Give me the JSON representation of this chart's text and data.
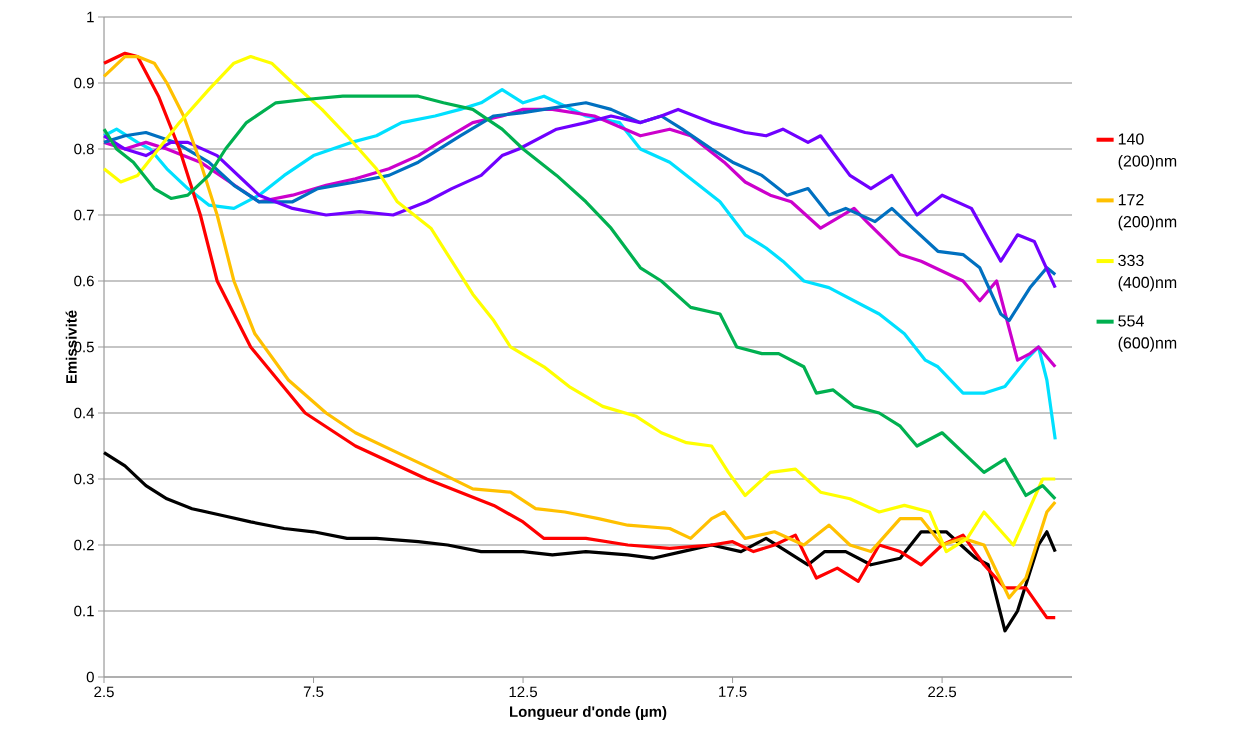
{
  "chart_data": {
    "type": "line",
    "xlabel": "Longueur d'onde (µm)",
    "ylabel": "Emissivité",
    "xlim": [
      2.5,
      25.6
    ],
    "xticks": [
      2.5,
      7.5,
      12.5,
      17.5,
      22.5
    ],
    "ylim": [
      0,
      1
    ],
    "yticks": [
      0,
      0.1,
      0.2,
      0.3,
      0.4,
      0.5,
      0.6,
      0.7,
      0.8,
      0.9,
      1
    ],
    "grid": "y",
    "legend": "right",
    "marker": "none",
    "line_style": "solid",
    "series": [
      {
        "color": "#00e0ff",
        "x": [
          2.5,
          2.8,
          3.3,
          3.6,
          4.0,
          4.5,
          5.0,
          5.6,
          6.2,
          6.8,
          7.5,
          8.4,
          9.0,
          9.6,
          10.4,
          11.0,
          11.5,
          12.0,
          12.5,
          13.0,
          14.0,
          14.8,
          15.3,
          16.0,
          16.6,
          17.2,
          17.8,
          18.3,
          18.7,
          19.2,
          19.8,
          20.4,
          21.0,
          21.6,
          22.1,
          22.4,
          23.0,
          23.5,
          24.0,
          24.5,
          24.8,
          25.0,
          25.2
        ],
        "values": [
          0.82,
          0.83,
          0.81,
          0.8,
          0.77,
          0.74,
          0.715,
          0.71,
          0.73,
          0.76,
          0.79,
          0.81,
          0.82,
          0.84,
          0.85,
          0.86,
          0.87,
          0.89,
          0.87,
          0.88,
          0.85,
          0.84,
          0.8,
          0.78,
          0.75,
          0.72,
          0.67,
          0.65,
          0.63,
          0.6,
          0.59,
          0.57,
          0.55,
          0.52,
          0.48,
          0.47,
          0.43,
          0.43,
          0.44,
          0.48,
          0.5,
          0.45,
          0.36
        ]
      },
      {
        "color": "#cc00cc",
        "x": [
          2.5,
          3.0,
          3.5,
          4.0,
          4.8,
          5.5,
          6.2,
          7.0,
          7.8,
          8.5,
          9.3,
          10.0,
          10.5,
          11.3,
          12.0,
          12.5,
          13.2,
          14.2,
          15.3,
          16.0,
          16.5,
          17.3,
          17.8,
          18.4,
          18.9,
          19.6,
          20.4,
          20.7,
          21.5,
          22.0,
          23.0,
          23.4,
          23.8,
          24.3,
          24.6,
          24.8,
          25.2
        ],
        "values": [
          0.81,
          0.8,
          0.81,
          0.8,
          0.78,
          0.75,
          0.72,
          0.73,
          0.745,
          0.755,
          0.77,
          0.79,
          0.81,
          0.84,
          0.85,
          0.86,
          0.86,
          0.85,
          0.82,
          0.83,
          0.82,
          0.78,
          0.75,
          0.73,
          0.72,
          0.68,
          0.71,
          0.69,
          0.64,
          0.63,
          0.6,
          0.57,
          0.6,
          0.48,
          0.49,
          0.5,
          0.47
        ]
      },
      {
        "color": "#0070c0",
        "x": [
          2.5,
          3.0,
          3.5,
          4.2,
          5.0,
          5.6,
          6.2,
          7.0,
          7.6,
          8.5,
          9.3,
          10.0,
          10.5,
          11.0,
          11.8,
          12.5,
          13.0,
          14.0,
          14.6,
          15.3,
          15.8,
          16.3,
          17.0,
          17.5,
          18.2,
          18.8,
          19.3,
          19.8,
          20.2,
          20.9,
          21.3,
          21.8,
          22.4,
          23.0,
          23.4,
          23.9,
          24.1,
          24.6,
          25.0,
          25.2
        ],
        "values": [
          0.81,
          0.82,
          0.825,
          0.81,
          0.78,
          0.745,
          0.72,
          0.72,
          0.74,
          0.75,
          0.76,
          0.78,
          0.8,
          0.82,
          0.85,
          0.855,
          0.86,
          0.87,
          0.86,
          0.84,
          0.85,
          0.83,
          0.8,
          0.78,
          0.76,
          0.73,
          0.74,
          0.7,
          0.71,
          0.69,
          0.71,
          0.68,
          0.645,
          0.64,
          0.62,
          0.55,
          0.54,
          0.59,
          0.62,
          0.61
        ]
      },
      {
        "color": "#7000ff",
        "x": [
          2.5,
          3.0,
          3.5,
          4.1,
          4.5,
          5.2,
          5.7,
          6.2,
          7.0,
          7.8,
          8.6,
          9.4,
          10.2,
          10.8,
          11.5,
          12.0,
          12.4,
          13.3,
          14.0,
          14.6,
          15.3,
          15.8,
          16.2,
          17.0,
          17.8,
          18.3,
          18.7,
          19.3,
          19.6,
          20.3,
          20.8,
          21.3,
          21.9,
          22.5,
          23.2,
          23.9,
          24.3,
          24.7,
          25.2
        ],
        "values": [
          0.82,
          0.8,
          0.79,
          0.81,
          0.81,
          0.79,
          0.76,
          0.73,
          0.71,
          0.7,
          0.705,
          0.7,
          0.72,
          0.74,
          0.76,
          0.79,
          0.8,
          0.83,
          0.84,
          0.85,
          0.84,
          0.85,
          0.86,
          0.84,
          0.825,
          0.82,
          0.83,
          0.81,
          0.82,
          0.76,
          0.74,
          0.76,
          0.7,
          0.73,
          0.71,
          0.63,
          0.67,
          0.66,
          0.59
        ]
      },
      {
        "color": "#000000",
        "x": [
          2.5,
          3.0,
          3.5,
          4.0,
          4.6,
          5.3,
          6.0,
          6.8,
          7.5,
          8.3,
          9.0,
          10.0,
          10.7,
          11.5,
          12.5,
          13.2,
          14.0,
          15.0,
          15.6,
          16.3,
          17.0,
          17.7,
          18.3,
          19.3,
          19.7,
          20.2,
          20.8,
          21.5,
          22.0,
          22.6,
          23.3,
          23.6,
          24.0,
          24.3,
          24.8,
          25.0,
          25.2
        ],
        "values": [
          0.34,
          0.32,
          0.29,
          0.27,
          0.255,
          0.245,
          0.235,
          0.225,
          0.22,
          0.21,
          0.21,
          0.205,
          0.2,
          0.19,
          0.19,
          0.185,
          0.19,
          0.185,
          0.18,
          0.19,
          0.2,
          0.19,
          0.21,
          0.17,
          0.19,
          0.19,
          0.17,
          0.18,
          0.22,
          0.22,
          0.18,
          0.17,
          0.07,
          0.1,
          0.2,
          0.22,
          0.19
        ]
      },
      {
        "name": "140 (200)nm",
        "color": "#ff0000",
        "x": [
          2.5,
          3.0,
          3.3,
          3.8,
          4.3,
          4.8,
          5.2,
          6.0,
          7.3,
          8.5,
          10.2,
          11.8,
          12.5,
          13.0,
          14.0,
          15.0,
          16.0,
          17.0,
          17.5,
          18.0,
          18.5,
          19.0,
          19.5,
          20.0,
          20.5,
          21.0,
          21.5,
          22.0,
          22.5,
          23.0,
          23.5,
          24.0,
          24.5,
          25.0,
          25.2
        ],
        "values": [
          0.93,
          0.945,
          0.94,
          0.88,
          0.8,
          0.7,
          0.6,
          0.5,
          0.4,
          0.35,
          0.3,
          0.26,
          0.235,
          0.21,
          0.21,
          0.2,
          0.195,
          0.2,
          0.205,
          0.19,
          0.2,
          0.215,
          0.15,
          0.165,
          0.145,
          0.2,
          0.19,
          0.17,
          0.2,
          0.215,
          0.17,
          0.135,
          0.135,
          0.09,
          0.09
        ]
      },
      {
        "name": "172 (200)nm",
        "color": "#ffc000",
        "x": [
          2.5,
          3.0,
          3.3,
          3.7,
          4.0,
          4.4,
          4.8,
          5.2,
          5.6,
          6.1,
          6.9,
          7.8,
          8.5,
          9.5,
          10.5,
          11.3,
          12.2,
          12.8,
          13.5,
          14.3,
          15.0,
          16.0,
          16.5,
          17.0,
          17.3,
          17.8,
          18.5,
          19.2,
          19.8,
          20.3,
          20.8,
          21.5,
          22.0,
          22.5,
          23.0,
          23.5,
          24.1,
          24.5,
          25.0,
          25.2
        ],
        "values": [
          0.91,
          0.94,
          0.94,
          0.93,
          0.9,
          0.85,
          0.78,
          0.7,
          0.6,
          0.52,
          0.45,
          0.4,
          0.37,
          0.34,
          0.31,
          0.285,
          0.28,
          0.255,
          0.25,
          0.24,
          0.23,
          0.225,
          0.21,
          0.24,
          0.25,
          0.21,
          0.22,
          0.2,
          0.23,
          0.2,
          0.19,
          0.24,
          0.24,
          0.2,
          0.21,
          0.2,
          0.12,
          0.15,
          0.25,
          0.265
        ]
      },
      {
        "name": "333 (400)nm",
        "color": "#ffff00",
        "x": [
          2.5,
          2.9,
          3.3,
          3.8,
          4.3,
          5.0,
          5.6,
          6.0,
          6.5,
          7.0,
          7.7,
          8.3,
          9.0,
          9.5,
          10.3,
          10.8,
          11.3,
          11.8,
          12.2,
          13.0,
          13.6,
          14.4,
          15.2,
          15.8,
          16.4,
          17.0,
          17.4,
          17.8,
          18.4,
          19.0,
          19.6,
          20.3,
          21.0,
          21.6,
          22.2,
          22.6,
          23.1,
          23.5,
          24.2,
          24.9,
          25.2
        ],
        "values": [
          0.77,
          0.75,
          0.76,
          0.8,
          0.84,
          0.89,
          0.93,
          0.94,
          0.93,
          0.9,
          0.86,
          0.82,
          0.77,
          0.72,
          0.68,
          0.63,
          0.58,
          0.54,
          0.5,
          0.47,
          0.44,
          0.41,
          0.395,
          0.37,
          0.355,
          0.35,
          0.31,
          0.275,
          0.31,
          0.315,
          0.28,
          0.27,
          0.25,
          0.26,
          0.25,
          0.19,
          0.21,
          0.25,
          0.2,
          0.3,
          0.3
        ]
      },
      {
        "name": "554 (600)nm",
        "color": "#00b050",
        "x": [
          2.5,
          2.8,
          3.2,
          3.7,
          4.1,
          4.5,
          5.0,
          5.4,
          5.9,
          6.6,
          7.3,
          8.2,
          9.0,
          10.0,
          10.6,
          11.3,
          12.0,
          12.5,
          13.3,
          14.0,
          14.6,
          15.3,
          15.8,
          16.5,
          17.2,
          17.6,
          18.2,
          18.6,
          19.2,
          19.5,
          19.9,
          20.4,
          21.0,
          21.5,
          21.9,
          22.5,
          23.0,
          23.5,
          24.0,
          24.5,
          24.9,
          25.2
        ],
        "values": [
          0.83,
          0.8,
          0.78,
          0.74,
          0.725,
          0.73,
          0.76,
          0.8,
          0.84,
          0.87,
          0.875,
          0.88,
          0.88,
          0.88,
          0.87,
          0.86,
          0.83,
          0.8,
          0.76,
          0.72,
          0.68,
          0.62,
          0.6,
          0.56,
          0.55,
          0.5,
          0.49,
          0.49,
          0.47,
          0.43,
          0.435,
          0.41,
          0.4,
          0.38,
          0.35,
          0.37,
          0.34,
          0.31,
          0.33,
          0.275,
          0.29,
          0.27
        ]
      }
    ]
  }
}
